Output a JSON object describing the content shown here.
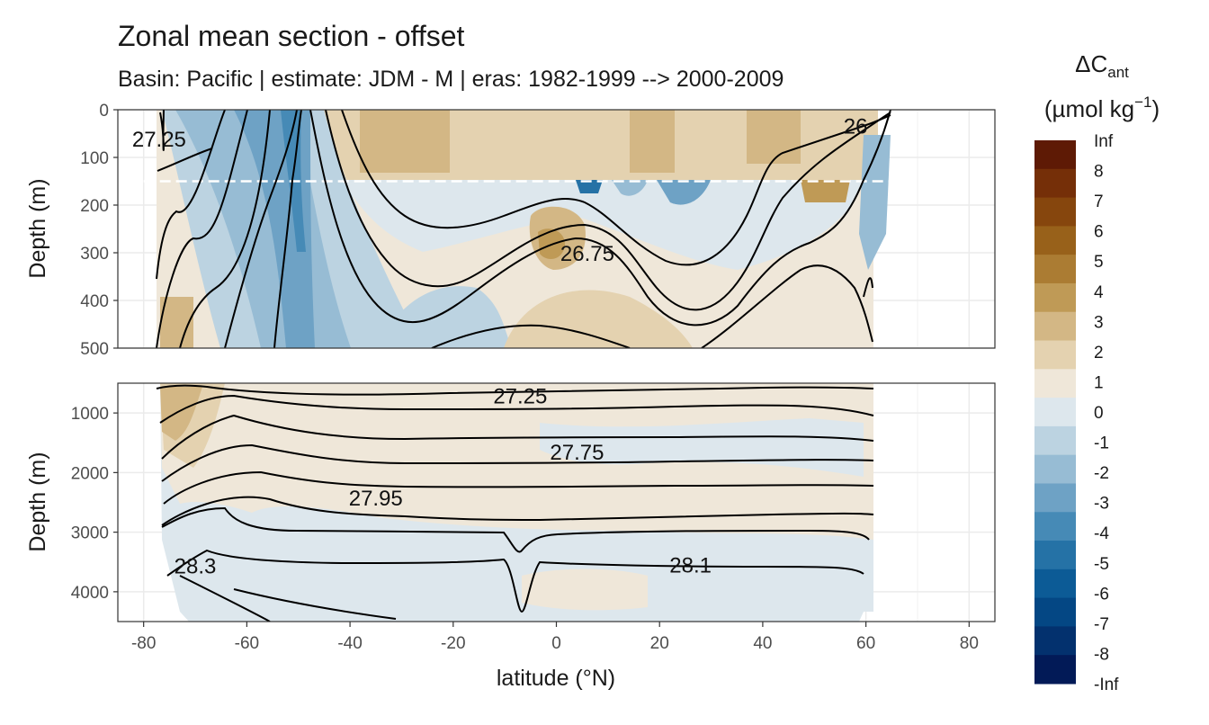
{
  "chart_data": {
    "type": "heatmap",
    "title": "Zonal mean section - offset",
    "subtitle": "Basin: Pacific | estimate: JDM - M | eras: 1982-1999 --> 2000-2009",
    "xlabel": "latitude (°N)",
    "ylabel": "Depth (m)",
    "xlim": [
      -85,
      85
    ],
    "x_ticks": [
      -80,
      -60,
      -40,
      -20,
      0,
      20,
      40,
      60,
      80
    ],
    "panels": [
      {
        "name": "upper",
        "ylim": [
          0,
          500
        ],
        "y_ticks": [
          0,
          100,
          200,
          300,
          400,
          500
        ],
        "reversed": true,
        "dashed_line_depth": 150,
        "contour_labels": [
          {
            "text": "27.25",
            "x": -77,
            "y": 62
          },
          {
            "text": "26.75",
            "x": 6,
            "y": 302
          },
          {
            "text": "26",
            "x": 58,
            "y": 35
          }
        ]
      },
      {
        "name": "lower",
        "ylim": [
          500,
          4500
        ],
        "y_ticks": [
          1000,
          2000,
          3000,
          4000
        ],
        "reversed": true,
        "contour_labels": [
          {
            "text": "27.25",
            "x": -7,
            "y": 720
          },
          {
            "text": "27.75",
            "x": 4,
            "y": 1660
          },
          {
            "text": "27.95",
            "x": -35,
            "y": 2430
          },
          {
            "text": "28.3",
            "x": -70,
            "y": 3570
          },
          {
            "text": "28.1",
            "x": 26,
            "y": 3560
          }
        ]
      }
    ],
    "legend": {
      "title_main": "ΔC",
      "title_sub": "ant",
      "units_main": "(µmol kg",
      "units_sup": "−1",
      "units_close": ")",
      "labels": [
        "Inf",
        "8",
        "7",
        "6",
        "5",
        "4",
        "3",
        "2",
        "1",
        "0",
        "-1",
        "-2",
        "-3",
        "-4",
        "-5",
        "-6",
        "-7",
        "-8",
        "-Inf"
      ],
      "colors": [
        "#5e1a05",
        "#752f08",
        "#86460d",
        "#98611a",
        "#ab7c33",
        "#bf9a56",
        "#d3b785",
        "#e4d2b0",
        "#efe7d9",
        "#dde7ed",
        "#bcd3e1",
        "#97bcd4",
        "#6ea2c5",
        "#468ab6",
        "#2572a6",
        "#0c5b96",
        "#044784",
        "#03316e",
        "#021a57"
      ],
      "position": "right"
    }
  }
}
